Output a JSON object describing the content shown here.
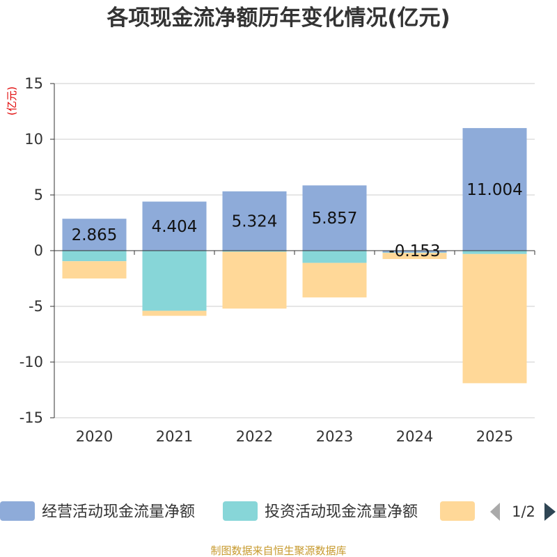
{
  "chart_data": {
    "type": "bar",
    "stacked": true,
    "title": "各项现金流净额历年变化情况(亿元)",
    "ylabel": "(亿元)",
    "xlabel": "",
    "categories": [
      "2020",
      "2021",
      "2022",
      "2023",
      "2024",
      "2025"
    ],
    "ylim": [
      -15,
      15
    ],
    "yticks": [
      15,
      10,
      5,
      0,
      -5,
      -10,
      -15
    ],
    "ytick_labels": [
      "15",
      "10",
      "5",
      "0",
      "-5",
      "-10",
      "-15"
    ],
    "grid": true,
    "series": [
      {
        "name": "经营活动现金流量净额",
        "color": "#8eabd9",
        "values": [
          2.865,
          4.404,
          5.324,
          5.857,
          -0.153,
          11.004
        ],
        "labels": [
          "2.865",
          "4.404",
          "5.324",
          "5.857",
          "-0.153",
          "11.004"
        ]
      },
      {
        "name": "投资活动现金流量净额",
        "color": "#87d6d8",
        "values": [
          -0.95,
          -5.4,
          -0.1,
          -1.1,
          -0.05,
          -0.3
        ]
      },
      {
        "name": "",
        "color": "#ffd898",
        "values": [
          -1.55,
          -0.45,
          -5.1,
          -3.1,
          -0.55,
          -11.6
        ]
      }
    ],
    "legend_position": "bottom"
  },
  "legend": {
    "page_text": "1/2",
    "prev_icon": "triangle-left",
    "next_icon": "triangle-right"
  },
  "source": "制图数据来自恒生聚源数据库"
}
